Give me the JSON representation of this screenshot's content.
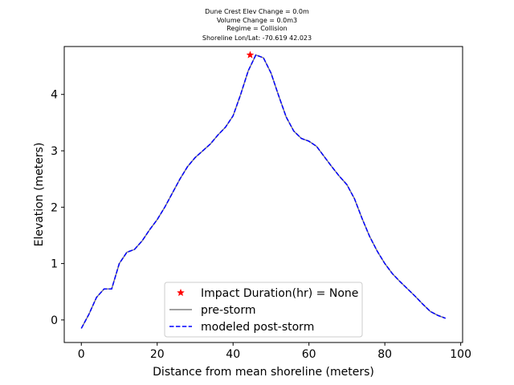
{
  "chart_data": {
    "type": "line",
    "title_lines": [
      "Dune Crest Elev Change = 0.0m",
      "Volume Change = 0.0m3",
      "Regime = Collision",
      "Shoreline Lon/Lat: -70.619 42.023"
    ],
    "xlabel": "Distance from mean shoreline (meters)",
    "ylabel": "Elevation (meters)",
    "xlim": [
      -4.5,
      100.5
    ],
    "ylim": [
      -0.4,
      4.85
    ],
    "xticks": [
      0,
      20,
      40,
      60,
      80,
      100
    ],
    "yticks": [
      0,
      1,
      2,
      3,
      4
    ],
    "grid": false,
    "legend_position": "lower-center",
    "series": [
      {
        "name": "pre-storm",
        "style": "solid",
        "color": "#808080",
        "x": [
          0,
          2,
          4,
          6,
          8,
          10,
          12,
          14,
          16,
          18,
          20,
          22,
          24,
          26,
          28,
          30,
          32,
          34,
          36,
          38,
          40,
          42,
          44,
          46,
          48,
          50,
          52,
          54,
          56,
          58,
          60,
          62,
          64,
          66,
          68,
          70,
          72,
          74,
          76,
          78,
          80,
          82,
          84,
          86,
          88,
          90,
          92,
          94,
          96
        ],
        "y": [
          -0.15,
          0.1,
          0.4,
          0.55,
          0.55,
          1.0,
          1.2,
          1.25,
          1.4,
          1.6,
          1.78,
          2.0,
          2.25,
          2.5,
          2.72,
          2.88,
          3.0,
          3.12,
          3.28,
          3.42,
          3.62,
          4.0,
          4.42,
          4.7,
          4.65,
          4.38,
          3.98,
          3.6,
          3.35,
          3.22,
          3.17,
          3.08,
          2.9,
          2.72,
          2.55,
          2.4,
          2.15,
          1.8,
          1.48,
          1.22,
          1.0,
          0.82,
          0.68,
          0.55,
          0.42,
          0.28,
          0.15,
          0.08,
          0.03
        ]
      },
      {
        "name": "modeled post-storm",
        "style": "dashed",
        "color": "#0000ff",
        "x": [
          0,
          2,
          4,
          6,
          8,
          10,
          12,
          14,
          16,
          18,
          20,
          22,
          24,
          26,
          28,
          30,
          32,
          34,
          36,
          38,
          40,
          42,
          44,
          46,
          48,
          50,
          52,
          54,
          56,
          58,
          60,
          62,
          64,
          66,
          68,
          70,
          72,
          74,
          76,
          78,
          80,
          82,
          84,
          86,
          88,
          90,
          92,
          94,
          96
        ],
        "y": [
          -0.15,
          0.1,
          0.4,
          0.55,
          0.55,
          1.0,
          1.2,
          1.25,
          1.4,
          1.6,
          1.78,
          2.0,
          2.25,
          2.5,
          2.72,
          2.88,
          3.0,
          3.12,
          3.28,
          3.42,
          3.62,
          4.0,
          4.42,
          4.7,
          4.65,
          4.38,
          3.98,
          3.6,
          3.35,
          3.22,
          3.17,
          3.08,
          2.9,
          2.72,
          2.55,
          2.4,
          2.15,
          1.8,
          1.48,
          1.22,
          1.0,
          0.82,
          0.68,
          0.55,
          0.42,
          0.28,
          0.15,
          0.08,
          0.03
        ]
      }
    ],
    "markers": [
      {
        "name": "Impact Duration(hr) = None",
        "symbol": "star",
        "color": "#ff0000",
        "x": 44.5,
        "y": 4.7
      }
    ],
    "legend": [
      {
        "label": "Impact Duration(hr) = None",
        "kind": "star",
        "color": "#ff0000"
      },
      {
        "label": "pre-storm",
        "kind": "solid",
        "color": "#808080"
      },
      {
        "label": "modeled post-storm",
        "kind": "dashed",
        "color": "#0000ff"
      }
    ]
  }
}
